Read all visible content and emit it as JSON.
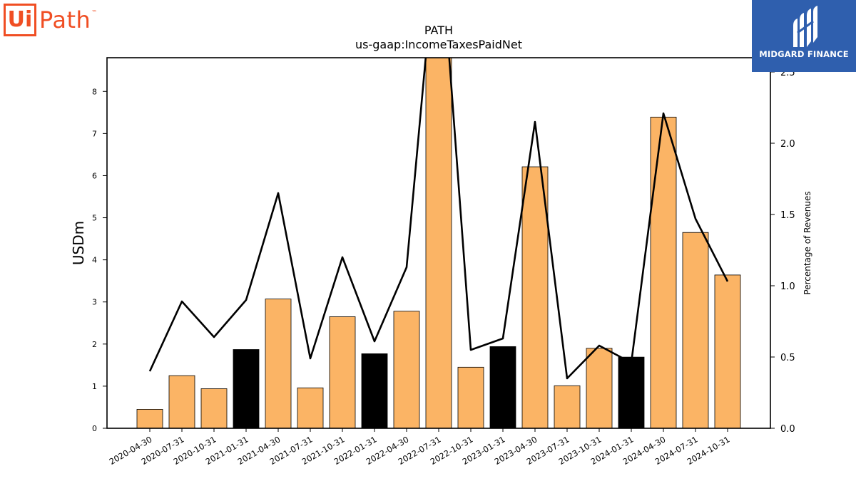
{
  "logos": {
    "left": {
      "box_text": "Ui",
      "word": "Path",
      "tm": "™",
      "color": "#f04e23"
    },
    "right": {
      "text": "MIDGARD FINANCE",
      "bg_color": "#2f5fae"
    }
  },
  "chart_data": {
    "type": "bar",
    "title": "PATH",
    "subtitle": "us-gaap:IncomeTaxesPaidNet",
    "ylabel": "USDm",
    "y2label": "Percentage of Revenues",
    "ylim": [
      0,
      8.8
    ],
    "y2lim": [
      0,
      2.6
    ],
    "yticks": [
      0,
      1,
      2,
      3,
      4,
      5,
      6,
      7,
      8
    ],
    "y2ticks": [
      "0.0",
      "0.5",
      "1.0",
      "1.5",
      "2.0",
      "2.5"
    ],
    "categories": [
      "2020-04-30",
      "2020-07-31",
      "2020-10-31",
      "2021-01-31",
      "2021-04-30",
      "2021-07-31",
      "2021-10-31",
      "2022-01-31",
      "2022-04-30",
      "2022-07-31",
      "2022-10-31",
      "2023-01-31",
      "2023-04-30",
      "2023-07-31",
      "2023-10-31",
      "2024-01-31",
      "2024-04-30",
      "2024-07-31",
      "2024-10-31"
    ],
    "series": [
      {
        "kind": "bar",
        "values": [
          0.45,
          1.25,
          0.94,
          1.87,
          3.07,
          0.96,
          2.65,
          1.77,
          2.78,
          8.9,
          1.45,
          1.94,
          6.21,
          1.01,
          1.9,
          1.69,
          7.39,
          4.65,
          3.64
        ],
        "colors": [
          "#fbb465",
          "#fbb465",
          "#fbb465",
          "#000000",
          "#fbb465",
          "#fbb465",
          "#fbb465",
          "#000000",
          "#fbb465",
          "#fbb465",
          "#fbb465",
          "#000000",
          "#fbb465",
          "#fbb465",
          "#fbb465",
          "#000000",
          "#fbb465",
          "#fbb465",
          "#fbb465"
        ]
      },
      {
        "kind": "line",
        "axis": "right",
        "values": [
          0.4,
          0.89,
          0.64,
          0.9,
          1.65,
          0.49,
          1.2,
          0.61,
          1.13,
          3.6,
          0.55,
          0.63,
          2.15,
          0.35,
          0.58,
          0.46,
          2.21,
          1.47,
          1.03
        ],
        "color": "#000000"
      }
    ],
    "grid": false
  }
}
